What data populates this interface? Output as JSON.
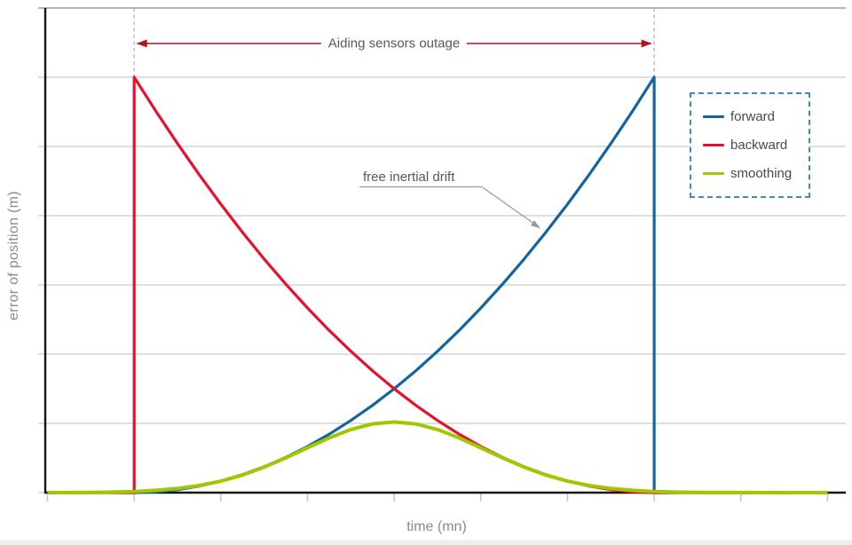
{
  "page": {
    "footer_color": "#efeff1",
    "background": "#ffffff"
  },
  "chart_data": {
    "type": "line",
    "title": "",
    "xlabel": "time (mn)",
    "ylabel": "error of position (m)",
    "x_range": [
      0,
      9
    ],
    "y_range": [
      0,
      7
    ],
    "x_tick_count": 10,
    "x_tick_labels": [
      "",
      "",
      "",
      "",
      "",
      "",
      "",
      "",
      "",
      ""
    ],
    "y_gridline_count": 7,
    "grid": "horizontal-only",
    "legend_position": "upper-right",
    "annotations": {
      "outage_label": "Aiding sensors outage",
      "outage_x_start": 1,
      "outage_x_end": 7,
      "drift_label": "free inertial drift",
      "drift_points_to": "forward curve"
    },
    "legend": {
      "items": [
        {
          "label": "forward",
          "color": "#1464a0"
        },
        {
          "label": "backward",
          "color": "#e8112d"
        },
        {
          "label": "smoothing",
          "color": "#a0c800"
        }
      ]
    },
    "series": [
      {
        "name": "forward",
        "color": "#1464a0",
        "width": 3.2,
        "points": [
          [
            0,
            0
          ],
          [
            1,
            0
          ],
          [
            1.25,
            0.01
          ],
          [
            1.5,
            0.042
          ],
          [
            1.75,
            0.094
          ],
          [
            2,
            0.167
          ],
          [
            2.25,
            0.26
          ],
          [
            2.5,
            0.375
          ],
          [
            2.75,
            0.51
          ],
          [
            3,
            0.667
          ],
          [
            3.25,
            0.844
          ],
          [
            3.5,
            1.042
          ],
          [
            3.75,
            1.26
          ],
          [
            4,
            1.5
          ],
          [
            4.25,
            1.76
          ],
          [
            4.5,
            2.042
          ],
          [
            4.75,
            2.344
          ],
          [
            5,
            2.667
          ],
          [
            5.25,
            3.01
          ],
          [
            5.5,
            3.375
          ],
          [
            5.75,
            3.76
          ],
          [
            6,
            4.167
          ],
          [
            6.25,
            4.594
          ],
          [
            6.5,
            5.042
          ],
          [
            6.75,
            5.51
          ],
          [
            7,
            6
          ],
          [
            7,
            0
          ],
          [
            9,
            0
          ]
        ]
      },
      {
        "name": "backward",
        "color": "#e8112d",
        "width": 3.2,
        "points": [
          [
            0,
            0
          ],
          [
            1,
            0
          ],
          [
            1,
            6
          ],
          [
            1.25,
            5.51
          ],
          [
            1.5,
            5.042
          ],
          [
            1.75,
            4.594
          ],
          [
            2,
            4.167
          ],
          [
            2.25,
            3.76
          ],
          [
            2.5,
            3.375
          ],
          [
            2.75,
            3.01
          ],
          [
            3,
            2.667
          ],
          [
            3.25,
            2.344
          ],
          [
            3.5,
            2.042
          ],
          [
            3.75,
            1.76
          ],
          [
            4,
            1.5
          ],
          [
            4.25,
            1.26
          ],
          [
            4.5,
            1.042
          ],
          [
            4.75,
            0.844
          ],
          [
            5,
            0.667
          ],
          [
            5.25,
            0.51
          ],
          [
            5.5,
            0.375
          ],
          [
            5.75,
            0.26
          ],
          [
            6,
            0.167
          ],
          [
            6.25,
            0.094
          ],
          [
            6.5,
            0.042
          ],
          [
            6.75,
            0.01
          ],
          [
            7,
            0
          ],
          [
            9,
            0
          ]
        ]
      },
      {
        "name": "smoothing",
        "color": "#a0c800",
        "width": 4,
        "points": [
          [
            0,
            0
          ],
          [
            0.5,
            0.004
          ],
          [
            0.75,
            0.008
          ],
          [
            1,
            0.017
          ],
          [
            1.25,
            0.033
          ],
          [
            1.5,
            0.06
          ],
          [
            1.75,
            0.102
          ],
          [
            2,
            0.166
          ],
          [
            2.25,
            0.254
          ],
          [
            2.5,
            0.368
          ],
          [
            2.75,
            0.502
          ],
          [
            3,
            0.648
          ],
          [
            3.25,
            0.79
          ],
          [
            3.5,
            0.911
          ],
          [
            3.75,
            0.992
          ],
          [
            4,
            1.02
          ],
          [
            4.25,
            0.992
          ],
          [
            4.5,
            0.911
          ],
          [
            4.75,
            0.79
          ],
          [
            5,
            0.648
          ],
          [
            5.25,
            0.502
          ],
          [
            5.5,
            0.368
          ],
          [
            5.75,
            0.254
          ],
          [
            6,
            0.166
          ],
          [
            6.25,
            0.102
          ],
          [
            6.5,
            0.06
          ],
          [
            6.75,
            0.033
          ],
          [
            7,
            0.017
          ],
          [
            7.25,
            0.008
          ],
          [
            7.5,
            0.004
          ],
          [
            8,
            0.001
          ],
          [
            9,
            0
          ]
        ]
      }
    ],
    "style": {
      "grid_color": "#cccccc",
      "grid_top_color": "#9c9c9c",
      "axis_color": "#141414",
      "tick_color": "#c4c4c4",
      "outage_line_color": "#b4b4b4",
      "outage_arrow_color": "#b5121b",
      "leader_color": "#999999",
      "label_color": "#8a8a8d",
      "annotation_color": "#58585a",
      "legend_text_color": "#4a4a4a"
    }
  }
}
